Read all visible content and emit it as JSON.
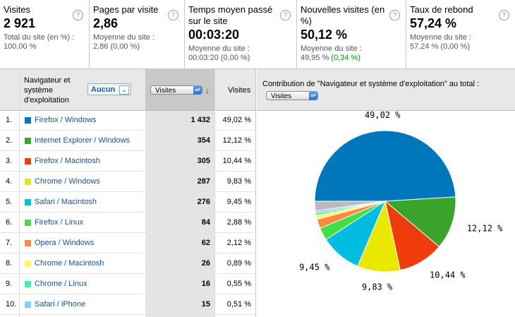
{
  "metrics": [
    {
      "label": "Visites",
      "value": "2 921",
      "sub1": "Total du site (en %) :",
      "sub2": "100,00 %",
      "sub2b": ""
    },
    {
      "label": "Pages par visite",
      "value": "2,86",
      "sub1": "Moyenne du site :",
      "sub2": "2,86 (0,00 %)",
      "sub2b": ""
    },
    {
      "label": "Temps moyen passé sur le site",
      "value": "00:03:20",
      "sub1": "Moyenne du site :",
      "sub2": "00:03:20 (0,00 %)",
      "sub2b": ""
    },
    {
      "label": "Nouvelles visites (en %)",
      "value": "50,12 %",
      "sub1": "Moyenne du site :",
      "sub2": "49,95 % ",
      "sub2b": "(0,34 %)"
    },
    {
      "label": "Taux de rebond",
      "value": "57,24 %",
      "sub1": "Moyenne du site :",
      "sub2": "57,24 % (0,00 %)",
      "sub2b": ""
    }
  ],
  "help_glyph": "?",
  "table": {
    "dimension_label": "Navigateur et système d'exploitation",
    "segment_button": "Aucun",
    "metric_select": "Visites",
    "visits_header": "Visites",
    "rows": [
      {
        "num": "1.",
        "name": "Firefox / Windows",
        "visits": "1 432",
        "pct": "49,02 %",
        "color": "#0077bb"
      },
      {
        "num": "2.",
        "name": "Internet Explorer / Windows",
        "visits": "354",
        "pct": "12,12 %",
        "color": "#3aa52a"
      },
      {
        "num": "3.",
        "name": "Firefox / Macintosh",
        "visits": "305",
        "pct": "10,44 %",
        "color": "#ee3d0b"
      },
      {
        "num": "4.",
        "name": "Chrome / Windows",
        "visits": "287",
        "pct": "9,83 %",
        "color": "#e8e800"
      },
      {
        "num": "5.",
        "name": "Safari / Macintosh",
        "visits": "276",
        "pct": "9,45 %",
        "color": "#00bde0"
      },
      {
        "num": "6.",
        "name": "Firefox / Linux",
        "visits": "84",
        "pct": "2,88 %",
        "color": "#44dd44"
      },
      {
        "num": "7.",
        "name": "Opera / Windows",
        "visits": "62",
        "pct": "2,12 %",
        "color": "#ff8844"
      },
      {
        "num": "8.",
        "name": "Chrome / Macintosh",
        "visits": "26",
        "pct": "0,89 %",
        "color": "#ffff55"
      },
      {
        "num": "9.",
        "name": "Chrome / Linux",
        "visits": "16",
        "pct": "0,55 %",
        "color": "#44eeaa"
      },
      {
        "num": "10.",
        "name": "Safari / iPhone",
        "visits": "15",
        "pct": "0,51 %",
        "color": "#88ccff"
      }
    ]
  },
  "chart_panel": {
    "title": "Contribution de \"Navigateur et système d'exploitation\" au total :",
    "select": "Visites"
  },
  "chart_data": {
    "type": "pie",
    "values": [
      49.02,
      12.12,
      10.44,
      9.83,
      9.45,
      2.88,
      2.12,
      0.89,
      0.55,
      0.51,
      2.19
    ],
    "colors": [
      "#0077bb",
      "#3aa52a",
      "#ee3d0b",
      "#e8e800",
      "#00bde0",
      "#44dd44",
      "#ff8844",
      "#ffff55",
      "#44eeaa",
      "#88ccff",
      "#bbbbbb"
    ],
    "labels": [
      "49,02 %",
      "12,12 %",
      "10,44 %",
      "9,83 %",
      "9,45 %",
      "",
      "",
      "",
      "",
      "",
      ""
    ]
  }
}
